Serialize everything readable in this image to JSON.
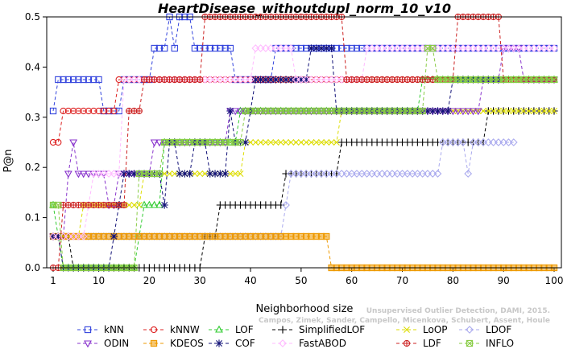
{
  "chart_data": {
    "type": "line",
    "title": "HeartDisease_withoutdupl_norm_10_v10",
    "xlabel": "Neighborhood size",
    "ylabel": "P@n",
    "xlim": [
      1,
      100
    ],
    "ylim": [
      0,
      0.5
    ],
    "xticks": [
      1,
      10,
      20,
      30,
      40,
      50,
      60,
      70,
      80,
      90,
      100
    ],
    "yticks": [
      0.0,
      0.1,
      0.2,
      0.3,
      0.4,
      0.5
    ],
    "legend_position": "bottom",
    "watermark": [
      "Unsupervised Outlier Detection, DAMI, 2015.",
      "Campos, Zimek, Sander, Campello, Micenkova, Schubert, Assent, Houle"
    ],
    "series": [
      {
        "name": "kNN",
        "color": "#3344dd",
        "marker": "square",
        "segments": [
          [
            1,
            0.3125
          ],
          [
            2,
            0.375
          ],
          [
            10,
            0.375
          ],
          [
            11,
            0.3125
          ],
          [
            14,
            0.3125
          ],
          [
            15,
            0.375
          ],
          [
            16,
            0.375
          ],
          [
            17,
            0.375
          ],
          [
            20,
            0.375
          ],
          [
            21,
            0.4375
          ],
          [
            22,
            0.4375
          ],
          [
            23,
            0.4375
          ],
          [
            24,
            0.5
          ],
          [
            25,
            0.4375
          ],
          [
            26,
            0.5
          ],
          [
            28,
            0.5
          ],
          [
            29,
            0.4375
          ],
          [
            36,
            0.4375
          ],
          [
            37,
            0.375
          ],
          [
            44,
            0.375
          ],
          [
            45,
            0.4375
          ],
          [
            100,
            0.4375
          ]
        ]
      },
      {
        "name": "kNNW",
        "color": "#dd2222",
        "marker": "circle",
        "segments": [
          [
            1,
            0.25
          ],
          [
            2,
            0.25
          ],
          [
            3,
            0.3125
          ],
          [
            13,
            0.3125
          ],
          [
            14,
            0.375
          ],
          [
            100,
            0.375
          ]
        ]
      },
      {
        "name": "LOF",
        "color": "#33cc33",
        "marker": "triangle",
        "segments": [
          [
            1,
            0.125
          ],
          [
            2,
            0.0625
          ],
          [
            3,
            0.0
          ],
          [
            17,
            0.0
          ],
          [
            18,
            0.0625
          ],
          [
            19,
            0.125
          ],
          [
            22,
            0.125
          ],
          [
            23,
            0.25
          ],
          [
            36,
            0.25
          ],
          [
            37,
            0.25
          ],
          [
            38,
            0.3125
          ],
          [
            73,
            0.3125
          ],
          [
            74,
            0.375
          ],
          [
            100,
            0.375
          ]
        ]
      },
      {
        "name": "SimplifiedLOF",
        "color": "#000000",
        "marker": "plus",
        "segments": [
          [
            1,
            0.0625
          ],
          [
            4,
            0.0625
          ],
          [
            5,
            0.0
          ],
          [
            30,
            0.0
          ],
          [
            31,
            0.0625
          ],
          [
            33,
            0.0625
          ],
          [
            34,
            0.125
          ],
          [
            46,
            0.125
          ],
          [
            47,
            0.1875
          ],
          [
            57,
            0.1875
          ],
          [
            58,
            0.25
          ],
          [
            86,
            0.25
          ],
          [
            87,
            0.3125
          ],
          [
            100,
            0.3125
          ]
        ]
      },
      {
        "name": "LoOP",
        "color": "#dddd00",
        "marker": "x",
        "segments": [
          [
            1,
            0.0625
          ],
          [
            6,
            0.0625
          ],
          [
            7,
            0.125
          ],
          [
            18,
            0.125
          ],
          [
            19,
            0.1875
          ],
          [
            38,
            0.1875
          ],
          [
            39,
            0.25
          ],
          [
            55,
            0.25
          ],
          [
            56,
            0.25
          ],
          [
            57,
            0.25
          ],
          [
            58,
            0.3125
          ],
          [
            100,
            0.3125
          ]
        ]
      },
      {
        "name": "LDOF",
        "color": "#aaaaee",
        "marker": "diamond",
        "segments": [
          [
            1,
            0.0625
          ],
          [
            36,
            0.0625
          ],
          [
            37,
            0.0625
          ],
          [
            47,
            0.125
          ],
          [
            48,
            0.1875
          ],
          [
            77,
            0.1875
          ],
          [
            78,
            0.25
          ],
          [
            82,
            0.25
          ],
          [
            83,
            0.1875
          ],
          [
            84,
            0.25
          ],
          [
            92,
            0.25
          ]
        ]
      },
      {
        "name": "ODIN",
        "color": "#8833cc",
        "marker": "triangle-down",
        "segments": [
          [
            1,
            0.0625
          ],
          [
            3,
            0.0625
          ],
          [
            4,
            0.1875
          ],
          [
            5,
            0.25
          ],
          [
            6,
            0.1875
          ],
          [
            9,
            0.1875
          ],
          [
            10,
            0.1875
          ],
          [
            12,
            0.125
          ],
          [
            14,
            0.1875
          ],
          [
            20,
            0.1875
          ],
          [
            21,
            0.25
          ],
          [
            35,
            0.25
          ],
          [
            36,
            0.3125
          ],
          [
            85,
            0.3125
          ],
          [
            86,
            0.375
          ],
          [
            89,
            0.375
          ],
          [
            90,
            0.4375
          ],
          [
            93,
            0.4375
          ],
          [
            94,
            0.375
          ],
          [
            100,
            0.375
          ]
        ]
      },
      {
        "name": "KDEOS",
        "color": "#ee9900",
        "marker": "square-fill",
        "segments": [
          [
            1,
            0.0625
          ],
          [
            55,
            0.0625
          ],
          [
            56,
            0.0
          ],
          [
            100,
            0.0
          ]
        ]
      },
      {
        "name": "COF",
        "color": "#111177",
        "marker": "star",
        "segments": [
          [
            1,
            0.0625
          ],
          [
            2,
            0.0625
          ],
          [
            3,
            0.0
          ],
          [
            12,
            0.0
          ],
          [
            13,
            0.0625
          ],
          [
            14,
            0.125
          ],
          [
            15,
            0.1875
          ],
          [
            22,
            0.1875
          ],
          [
            23,
            0.125
          ],
          [
            24,
            0.25
          ],
          [
            26,
            0.1875
          ],
          [
            29,
            0.25
          ],
          [
            32,
            0.1875
          ],
          [
            36,
            0.3125
          ],
          [
            37,
            0.25
          ],
          [
            40,
            0.3125
          ],
          [
            41,
            0.375
          ],
          [
            51,
            0.375
          ],
          [
            52,
            0.4375
          ],
          [
            56,
            0.4375
          ],
          [
            57,
            0.3125
          ],
          [
            79,
            0.3125
          ],
          [
            80,
            0.375
          ],
          [
            90,
            0.375
          ]
        ]
      },
      {
        "name": "FastABOD",
        "color": "#ffbbff",
        "marker": "diamond",
        "segments": [
          [
            1,
            0.0625
          ],
          [
            7,
            0.0625
          ],
          [
            8,
            0.125
          ],
          [
            9,
            0.1875
          ],
          [
            15,
            0.375
          ],
          [
            41,
            0.4375
          ],
          [
            48,
            0.4375
          ],
          [
            49,
            0.375
          ],
          [
            62,
            0.375
          ],
          [
            63,
            0.4375
          ],
          [
            100,
            0.4375
          ]
        ]
      },
      {
        "name": "LDF",
        "color": "#cc2222",
        "marker": "circle-plus",
        "segments": [
          [
            1,
            0.0
          ],
          [
            2,
            0.0
          ],
          [
            3,
            0.125
          ],
          [
            15,
            0.125
          ],
          [
            16,
            0.3125
          ],
          [
            17,
            0.3125
          ],
          [
            18,
            0.3125
          ],
          [
            19,
            0.375
          ],
          [
            30,
            0.375
          ],
          [
            31,
            0.5
          ],
          [
            58,
            0.5
          ],
          [
            59,
            0.375
          ],
          [
            80,
            0.375
          ],
          [
            81,
            0.5
          ],
          [
            89,
            0.5
          ],
          [
            90,
            0.375
          ],
          [
            100,
            0.375
          ]
        ]
      },
      {
        "name": "INFLO",
        "color": "#88cc44",
        "marker": "square-x",
        "segments": [
          [
            1,
            0.125
          ],
          [
            3,
            0.0
          ],
          [
            17,
            0.0
          ],
          [
            18,
            0.1875
          ],
          [
            22,
            0.1875
          ],
          [
            23,
            0.25
          ],
          [
            38,
            0.25
          ],
          [
            39,
            0.3125
          ],
          [
            74,
            0.3125
          ],
          [
            75,
            0.4375
          ],
          [
            76,
            0.4375
          ],
          [
            77,
            0.375
          ],
          [
            100,
            0.375
          ]
        ]
      }
    ]
  },
  "legend_rows": [
    [
      "kNN",
      "kNNW",
      "LOF",
      "SimplifiedLOF",
      "LoOP",
      "LDOF"
    ],
    [
      "ODIN",
      "KDEOS",
      "COF",
      "FastABOD",
      "LDF",
      "INFLO"
    ]
  ]
}
